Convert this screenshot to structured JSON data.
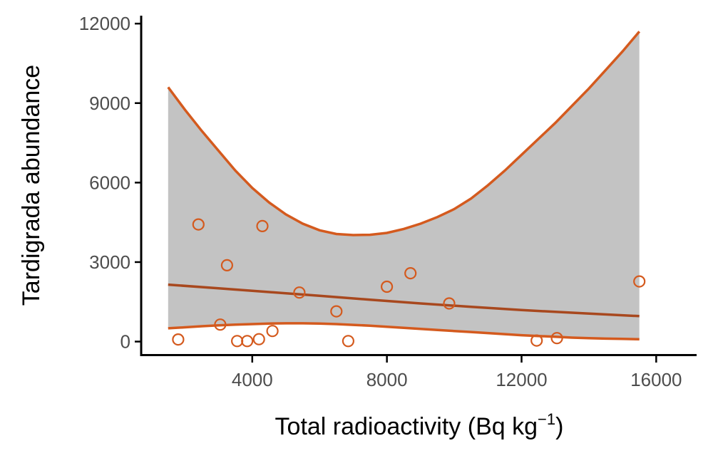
{
  "chart_data": {
    "type": "scatter",
    "title": "",
    "xlabel": "Total radioactivity (Bq kg",
    "xlabel_sup": "−1",
    "xlabel_suffix": ")",
    "ylabel": "Tardigrada abundance",
    "xlim": [
      700,
      17200
    ],
    "ylim": [
      -550,
      12300
    ],
    "xticks": [
      4000,
      8000,
      12000,
      16000
    ],
    "yticks": [
      0,
      3000,
      6000,
      9000,
      12000
    ],
    "xtick_labels": [
      "4000",
      "8000",
      "12000",
      "16000"
    ],
    "ytick_labels": [
      "0",
      "3000",
      "6000",
      "9000",
      "12000"
    ],
    "grid": false,
    "legend": "none",
    "colors": {
      "points": "#d45a1e",
      "fit_line": "#a8481e",
      "ci_line": "#d45a1e",
      "ci_fill": "#c3c3c3"
    },
    "points": [
      {
        "x": 1800,
        "y": 80
      },
      {
        "x": 2400,
        "y": 4420
      },
      {
        "x": 3050,
        "y": 640
      },
      {
        "x": 3250,
        "y": 2880
      },
      {
        "x": 3550,
        "y": 20
      },
      {
        "x": 3850,
        "y": 20
      },
      {
        "x": 4200,
        "y": 90
      },
      {
        "x": 4300,
        "y": 4360
      },
      {
        "x": 4600,
        "y": 400
      },
      {
        "x": 5400,
        "y": 1850
      },
      {
        "x": 6500,
        "y": 1140
      },
      {
        "x": 6850,
        "y": 20
      },
      {
        "x": 8000,
        "y": 2070
      },
      {
        "x": 8700,
        "y": 2580
      },
      {
        "x": 9850,
        "y": 1440
      },
      {
        "x": 12450,
        "y": 40
      },
      {
        "x": 13050,
        "y": 130
      },
      {
        "x": 15500,
        "y": 2270
      }
    ],
    "fit": {
      "x": [
        1500,
        3000,
        4500,
        6000,
        7500,
        9000,
        10500,
        12000,
        13500,
        15500
      ],
      "y": [
        2150,
        2010,
        1870,
        1730,
        1580,
        1440,
        1310,
        1190,
        1090,
        960
      ]
    },
    "ci_upper": {
      "x": [
        1500,
        2000,
        2500,
        3000,
        3500,
        4000,
        4500,
        5000,
        5500,
        6000,
        6500,
        7000,
        7500,
        8000,
        8500,
        9000,
        9500,
        10000,
        10500,
        11000,
        11500,
        12000,
        12500,
        13000,
        13500,
        14000,
        14500,
        15000,
        15500
      ],
      "y": [
        9600,
        8750,
        7950,
        7200,
        6450,
        5800,
        5250,
        4800,
        4450,
        4200,
        4060,
        4020,
        4030,
        4100,
        4250,
        4450,
        4700,
        5000,
        5400,
        5900,
        6450,
        7050,
        7650,
        8250,
        8900,
        9550,
        10250,
        10950,
        11700
      ]
    },
    "ci_lower": {
      "x": [
        1500,
        2000,
        2500,
        3000,
        3500,
        4000,
        4500,
        5000,
        5500,
        6000,
        6500,
        7000,
        7500,
        8000,
        8500,
        9000,
        9500,
        10000,
        10500,
        11000,
        11500,
        12000,
        12500,
        13000,
        13500,
        14000,
        14500,
        15000,
        15500
      ],
      "y": [
        500,
        540,
        580,
        610,
        640,
        660,
        680,
        690,
        690,
        680,
        660,
        630,
        600,
        560,
        520,
        480,
        440,
        400,
        360,
        320,
        280,
        240,
        210,
        180,
        150,
        130,
        110,
        100,
        90
      ]
    }
  }
}
